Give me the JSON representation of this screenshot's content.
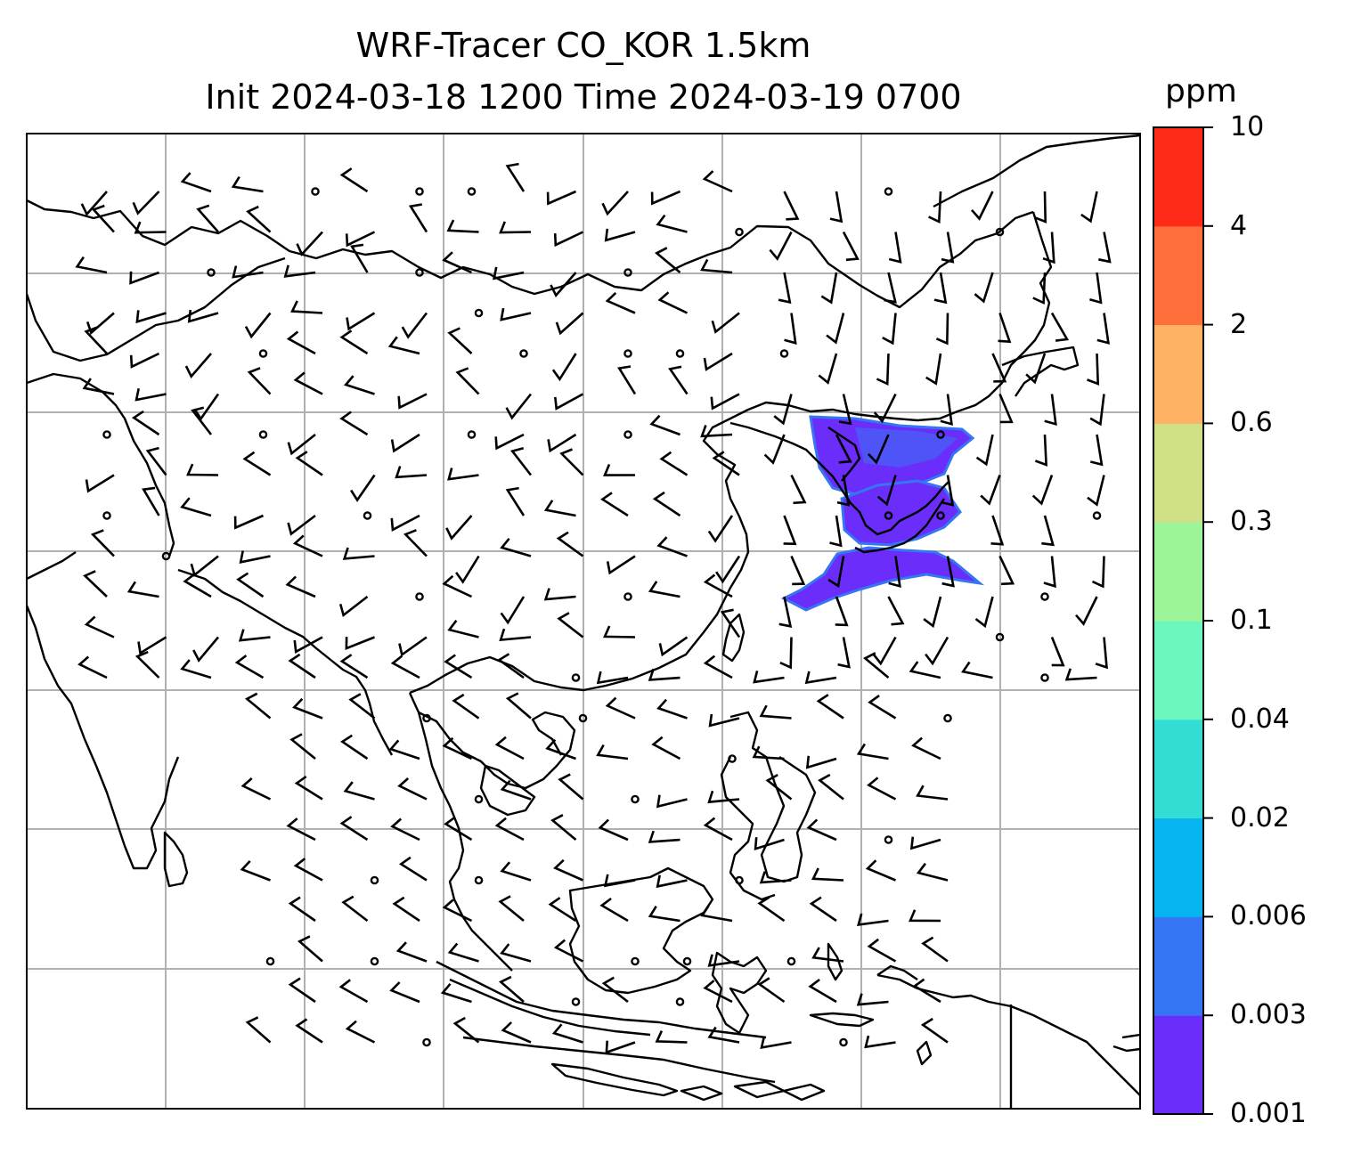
{
  "title": {
    "line1": "WRF-Tracer CO_KOR 1.5km",
    "line2": "Init 2024-03-18 1200 Time 2024-03-19 0700"
  },
  "colorbar": {
    "unit": "ppm",
    "levels": [
      "0.001",
      "0.003",
      "0.006",
      "0.02",
      "0.04",
      "0.1",
      "0.3",
      "0.6",
      "2",
      "4",
      "10"
    ],
    "colors": [
      "#6a2dfa",
      "#3675f3",
      "#06b4ef",
      "#33ddd4",
      "#6bf7bd",
      "#9cf598",
      "#cfe086",
      "#fdb264",
      "#fe6f3c",
      "#ff2a17"
    ]
  },
  "map": {
    "grid": "on",
    "tracer_plume_color": "#6a2dfa",
    "tracer_plume_edge_color": "#3675f3",
    "coastline_color": "#000000",
    "grid_color": "#b0b0b0"
  }
}
